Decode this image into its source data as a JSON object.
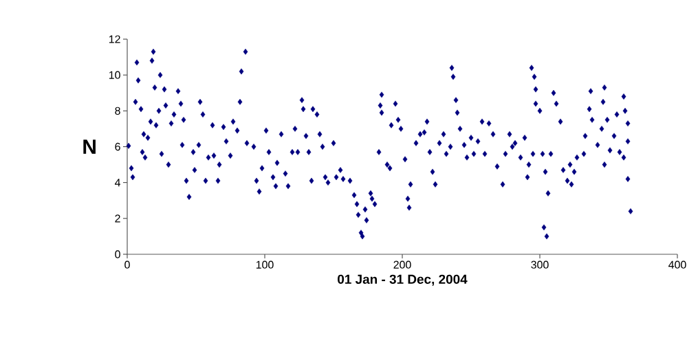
{
  "chart_data": {
    "type": "scatter",
    "xlabel": "01 Jan - 31 Dec, 2004",
    "ylabel": "N",
    "x": [
      1,
      3,
      4,
      6,
      7,
      8,
      10,
      11,
      12,
      13,
      15,
      17,
      18,
      19,
      20,
      21,
      23,
      24,
      25,
      27,
      28,
      30,
      32,
      34,
      37,
      39,
      40,
      41,
      43,
      45,
      48,
      49,
      52,
      53,
      55,
      57,
      59,
      62,
      63,
      66,
      67,
      70,
      72,
      75,
      77,
      80,
      82,
      83,
      86,
      87,
      92,
      94,
      96,
      98,
      101,
      103,
      106,
      108,
      109,
      112,
      115,
      117,
      120,
      122,
      124,
      127,
      128,
      130,
      132,
      134,
      135,
      138,
      140,
      142,
      144,
      146,
      150,
      152,
      155,
      157,
      162,
      165,
      167,
      168,
      170,
      171,
      173,
      174,
      177,
      178,
      180,
      183,
      184,
      185,
      185,
      189,
      191,
      192,
      195,
      197,
      199,
      202,
      204,
      205,
      206,
      210,
      213,
      216,
      218,
      220,
      222,
      224,
      227,
      230,
      232,
      235,
      236,
      237,
      239,
      240,
      242,
      245,
      247,
      250,
      252,
      255,
      258,
      260,
      263,
      266,
      269,
      273,
      275,
      278,
      280,
      282,
      286,
      289,
      291,
      292,
      294,
      295,
      296,
      297,
      297,
      300,
      302,
      303,
      304,
      305,
      306,
      308,
      310,
      312,
      315,
      317,
      320,
      322,
      323,
      325,
      327,
      332,
      333,
      336,
      337,
      338,
      342,
      345,
      346,
      347,
      347,
      349,
      351,
      354,
      356,
      358,
      361,
      361,
      362,
      364,
      364,
      364,
      366
    ],
    "values": [
      6.05,
      4.8,
      4.3,
      8.5,
      10.7,
      9.7,
      8.1,
      5.7,
      6.7,
      5.4,
      6.5,
      7.4,
      10.8,
      11.3,
      9.3,
      7.2,
      8.0,
      10.0,
      5.6,
      9.2,
      8.3,
      5.0,
      7.3,
      7.8,
      9.1,
      8.4,
      6.1,
      7.5,
      4.1,
      3.2,
      5.7,
      4.7,
      6.1,
      8.5,
      7.8,
      4.1,
      5.4,
      7.2,
      5.5,
      4.1,
      5.0,
      7.1,
      6.3,
      5.5,
      7.4,
      6.9,
      8.5,
      10.2,
      11.3,
      6.2,
      6.0,
      4.1,
      3.5,
      4.8,
      6.9,
      5.7,
      4.3,
      3.8,
      5.1,
      6.7,
      4.5,
      3.8,
      5.7,
      7.0,
      5.7,
      8.6,
      8.1,
      6.6,
      5.7,
      4.1,
      8.1,
      7.8,
      6.7,
      6.0,
      4.3,
      4.0,
      6.2,
      4.3,
      4.7,
      4.2,
      4.1,
      3.3,
      2.8,
      2.2,
      1.2,
      1.0,
      2.5,
      1.9,
      3.4,
      3.1,
      2.8,
      5.7,
      8.3,
      7.9,
      8.9,
      5.0,
      4.8,
      7.2,
      8.4,
      7.5,
      7.0,
      5.3,
      3.1,
      2.6,
      3.9,
      6.2,
      6.7,
      6.8,
      7.4,
      5.7,
      4.6,
      3.9,
      6.2,
      6.7,
      5.6,
      6.0,
      10.4,
      9.9,
      8.6,
      7.9,
      7.0,
      6.1,
      5.4,
      6.5,
      5.6,
      6.3,
      7.4,
      5.6,
      7.3,
      6.7,
      4.9,
      3.9,
      5.6,
      6.7,
      6.0,
      6.2,
      5.4,
      6.5,
      4.3,
      5.0,
      10.4,
      5.6,
      9.9,
      9.2,
      8.4,
      8.0,
      5.6,
      1.5,
      4.6,
      1.0,
      3.4,
      5.6,
      9.0,
      8.4,
      7.4,
      4.7,
      4.1,
      5.0,
      3.9,
      4.6,
      5.4,
      5.6,
      6.6,
      8.1,
      9.1,
      7.5,
      6.1,
      7.0,
      8.5,
      9.3,
      5.0,
      7.5,
      5.8,
      6.6,
      7.8,
      5.7,
      5.4,
      8.8,
      8.0,
      6.3,
      7.3,
      4.2,
      2.4
    ],
    "color": "#000080",
    "marker": "diamond",
    "grid": false,
    "xlim": [
      0,
      400
    ],
    "xticks": [
      0,
      100,
      200,
      300,
      400
    ],
    "ylim": [
      0,
      12
    ],
    "yticks": [
      0,
      2,
      4,
      6,
      8,
      10,
      12
    ]
  }
}
